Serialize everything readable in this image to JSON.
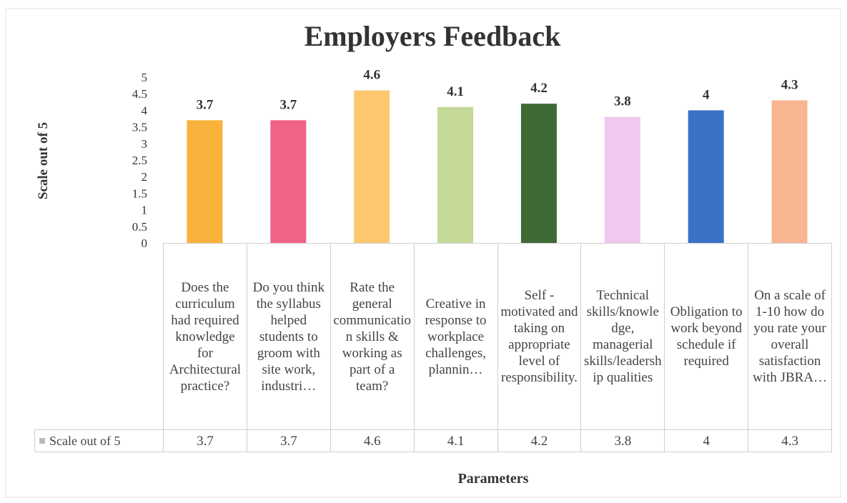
{
  "chart_data": {
    "type": "bar",
    "title": "Employers Feedback",
    "x_label": "Parameters",
    "y_label": "Scale out of 5",
    "categories": [
      "Does the curriculum had required knowledge for Architectural practice?",
      "Do you think the syllabus helped students to groom with site work, industri…",
      "Rate the general communication skills & working as part of a team?",
      "Creative in response to workplace challenges, plannin…",
      "Self - motivated and taking on appropriate level of responsibility.",
      "Technical skills/knowledge, managerial skills/leadership qualities",
      "Obligation to work beyond schedule if required",
      "On a scale of 1-10 how do you rate your overall satisfaction with JBRA…"
    ],
    "series": [
      {
        "name": "Scale out of 5",
        "colors": [
          "#f8b13a",
          "#f06384",
          "#fdc870",
          "#c4d898",
          "#3e6a36",
          "#f2c8f0",
          "#3a72c8",
          "#f8b592"
        ],
        "values": [
          3.7,
          3.7,
          4.6,
          4.1,
          4.2,
          3.8,
          4,
          4.3
        ]
      }
    ],
    "ylim": [
      0,
      5
    ],
    "yticks": [
      0,
      0.5,
      1,
      1.5,
      2,
      2.5,
      3,
      3.5,
      4,
      4.5,
      5
    ],
    "data_table": true
  }
}
